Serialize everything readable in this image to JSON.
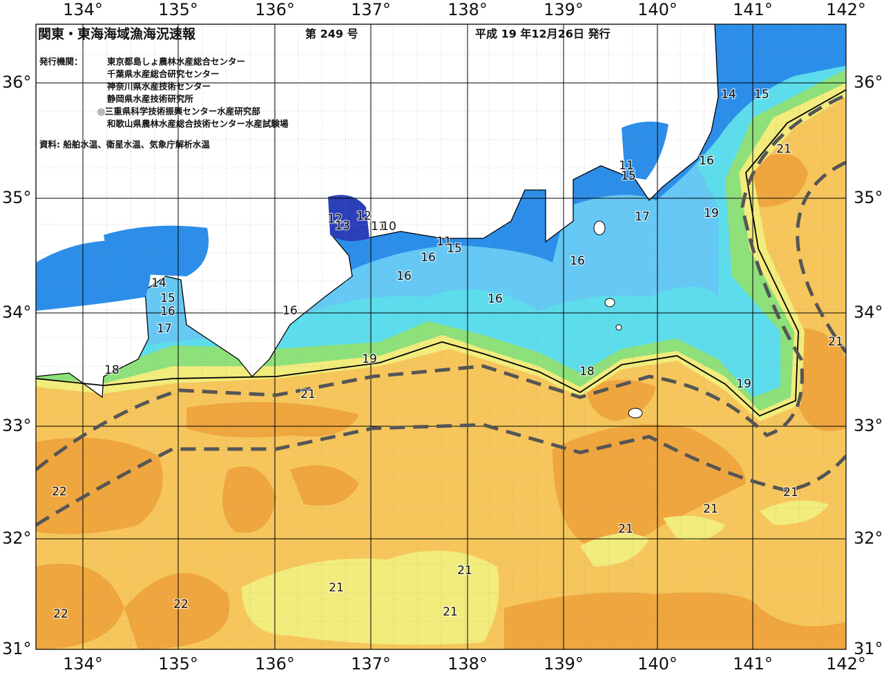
{
  "header": {
    "title": "関東・東海海域漁海況速報",
    "issue": "第 249 号",
    "date": "平成 19 年12月26日 発行"
  },
  "publishers": {
    "label": "発行機関：",
    "items": [
      "東京都島しょ農林水産総合センター",
      "千葉県水産総合研究センター",
      "神奈川県水産技術センター",
      "静岡県水産技術研究所",
      "◎三重県科学技術振興センター水産研究部",
      "和歌山県農林水産総合技術センター水産試験場"
    ]
  },
  "source": "資料: 船舶水温、衛星水温、気象庁解析水温",
  "longitude_labels": [
    "134°",
    "135°",
    "136°",
    "137°",
    "138°",
    "139°",
    "140°",
    "141°",
    "142°"
  ],
  "latitude_labels": [
    "36°",
    "35°",
    "34°",
    "33°",
    "32°",
    "31°"
  ],
  "contour_labels": [
    14,
    15,
    16,
    17,
    18,
    12,
    13,
    12,
    11,
    10,
    11,
    15,
    16,
    16,
    16,
    16,
    16,
    19,
    21,
    18,
    19,
    17,
    19,
    15,
    11,
    16,
    21,
    14,
    15,
    21,
    22,
    21,
    21,
    21,
    21,
    21,
    21,
    22,
    22
  ]
}
